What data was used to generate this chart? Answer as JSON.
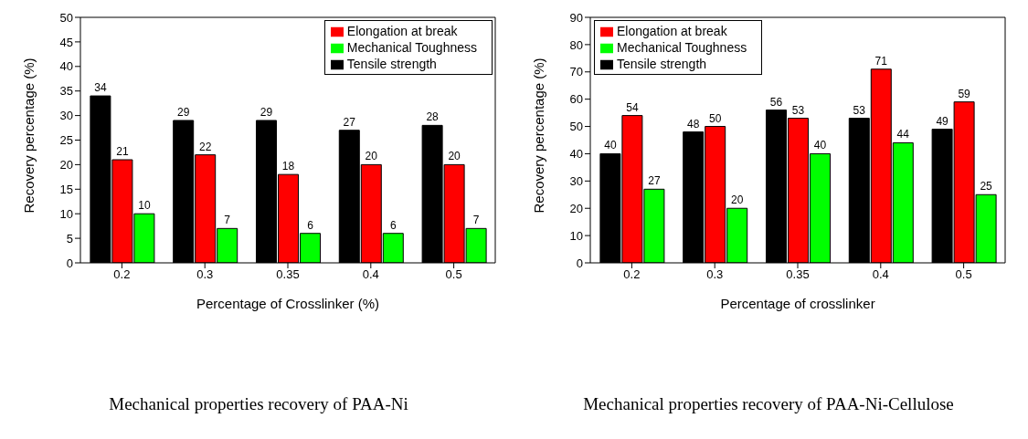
{
  "chart_data": [
    {
      "type": "bar",
      "title": "Mechanical properties recovery of PAA-Ni",
      "xlabel": "Percentage of Crosslinker (%)",
      "ylabel": "Recovery percentage (%)",
      "categories": [
        "0.2",
        "0.3",
        "0.35",
        "0.4",
        "0.5"
      ],
      "series": [
        {
          "name": "Tensile strength",
          "color": "#000000",
          "values": [
            34,
            29,
            29,
            27,
            28
          ]
        },
        {
          "name": "Elongation at break",
          "color": "#ff0000",
          "values": [
            21,
            22,
            18,
            20,
            20
          ]
        },
        {
          "name": "Mechanical Toughness",
          "color": "#00ff00",
          "values": [
            10,
            7,
            6,
            6,
            7
          ]
        }
      ],
      "ylim": [
        0,
        50
      ],
      "yticks": [
        0,
        5,
        10,
        15,
        20,
        25,
        30,
        35,
        40,
        45,
        50
      ],
      "legend": "top right",
      "data_labels": true
    },
    {
      "type": "bar",
      "title": "Mechanical properties recovery of PAA-Ni-Cellulose",
      "xlabel": "Percentage of crosslinker",
      "ylabel": "Recovery percentage (%)",
      "categories": [
        "0.2",
        "0.3",
        "0.35",
        "0.4",
        "0.5"
      ],
      "series": [
        {
          "name": "Tensile strength",
          "color": "#000000",
          "values": [
            40,
            48,
            56,
            53,
            49
          ]
        },
        {
          "name": "Elongation at break",
          "color": "#ff0000",
          "values": [
            54,
            50,
            53,
            71,
            59
          ]
        },
        {
          "name": "Mechanical Toughness",
          "color": "#00ff00",
          "values": [
            27,
            20,
            40,
            44,
            25
          ]
        }
      ],
      "ylim": [
        0,
        90
      ],
      "yticks": [
        0,
        10,
        20,
        30,
        40,
        50,
        60,
        70,
        80,
        90
      ],
      "legend": "top left",
      "data_labels": true
    }
  ]
}
